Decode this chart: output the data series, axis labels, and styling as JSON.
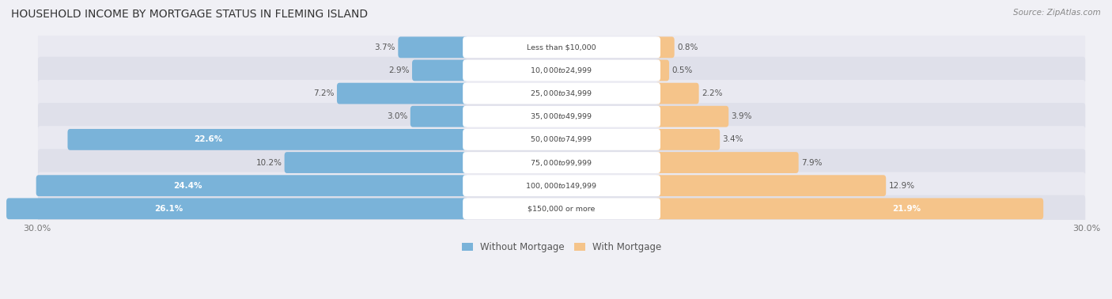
{
  "title": "HOUSEHOLD INCOME BY MORTGAGE STATUS IN FLEMING ISLAND",
  "source": "Source: ZipAtlas.com",
  "categories": [
    "Less than $10,000",
    "$10,000 to $24,999",
    "$25,000 to $34,999",
    "$35,000 to $49,999",
    "$50,000 to $74,999",
    "$75,000 to $99,999",
    "$100,000 to $149,999",
    "$150,000 or more"
  ],
  "without_mortgage": [
    3.7,
    2.9,
    7.2,
    3.0,
    22.6,
    10.2,
    24.4,
    26.1
  ],
  "with_mortgage": [
    0.8,
    0.5,
    2.2,
    3.9,
    3.4,
    7.9,
    12.9,
    21.9
  ],
  "color_without": "#7ab3d9",
  "color_with": "#f5c48a",
  "xlim": 30.0,
  "background_fig": "#f0f0f5",
  "background_row_light": "#e8e8f0",
  "background_row_dark": "#dcdce8"
}
